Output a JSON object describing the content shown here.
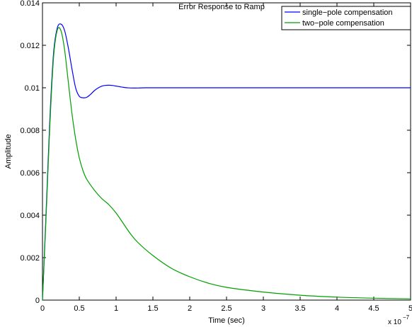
{
  "chart_data": {
    "type": "line",
    "title": "Error Response to Ramp",
    "xlabel": "Time (sec)",
    "ylabel": "Amplitude",
    "x_multiplier_label": "x 10",
    "x_multiplier_exponent": "−7",
    "xlim": [
      0,
      5
    ],
    "ylim": [
      0,
      0.014
    ],
    "xticks": [
      0,
      0.5,
      1,
      1.5,
      2,
      2.5,
      3,
      3.5,
      4,
      4.5,
      5
    ],
    "xtick_labels": [
      "0",
      "0.5",
      "1",
      "1.5",
      "2",
      "2.5",
      "3",
      "3.5",
      "4",
      "4.5",
      "5"
    ],
    "yticks": [
      0,
      0.002,
      0.004,
      0.006,
      0.008,
      0.01,
      0.012,
      0.014
    ],
    "ytick_labels": [
      "0",
      "0.002",
      "0.004",
      "0.006",
      "0.008",
      "0.01",
      "0.012",
      "0.014"
    ],
    "grid": false,
    "legend_position": "top-right",
    "series": [
      {
        "name": "single−pole compensation",
        "color": "#0000ff",
        "x": [
          0,
          0.05,
          0.1,
          0.15,
          0.2,
          0.25,
          0.3,
          0.35,
          0.4,
          0.45,
          0.5,
          0.55,
          0.6,
          0.65,
          0.7,
          0.75,
          0.8,
          0.85,
          0.9,
          0.95,
          1.0,
          1.05,
          1.1,
          1.15,
          1.2,
          1.3,
          1.4,
          1.5,
          1.7,
          2.0,
          3.0,
          4.0,
          5.0
        ],
        "values": [
          0,
          0.0042,
          0.0085,
          0.0116,
          0.0128,
          0.013,
          0.0127,
          0.0119,
          0.0109,
          0.01,
          0.0096,
          0.00953,
          0.00955,
          0.00968,
          0.00985,
          0.00998,
          0.01007,
          0.01011,
          0.01012,
          0.01011,
          0.01008,
          0.01005,
          0.01002,
          0.01,
          0.00999,
          0.00999,
          0.01,
          0.01,
          0.01,
          0.01,
          0.01,
          0.01,
          0.01
        ]
      },
      {
        "name": "two−pole compensation",
        "color": "#00a000",
        "x": [
          0,
          0.05,
          0.1,
          0.15,
          0.2,
          0.25,
          0.3,
          0.35,
          0.4,
          0.45,
          0.5,
          0.55,
          0.6,
          0.7,
          0.8,
          0.9,
          1.0,
          1.1,
          1.2,
          1.3,
          1.5,
          1.75,
          2.0,
          2.25,
          2.5,
          3.0,
          3.5,
          4.0,
          4.5,
          5.0
        ],
        "values": [
          0,
          0.004,
          0.0082,
          0.0114,
          0.0127,
          0.0127,
          0.0118,
          0.0103,
          0.0088,
          0.0076,
          0.0067,
          0.0061,
          0.0057,
          0.0052,
          0.0048,
          0.0045,
          0.0041,
          0.0036,
          0.0031,
          0.0027,
          0.0021,
          0.0015,
          0.0011,
          0.0008,
          0.0006,
          0.00038,
          0.00023,
          0.00014,
          9e-05,
          6e-05
        ]
      }
    ]
  }
}
